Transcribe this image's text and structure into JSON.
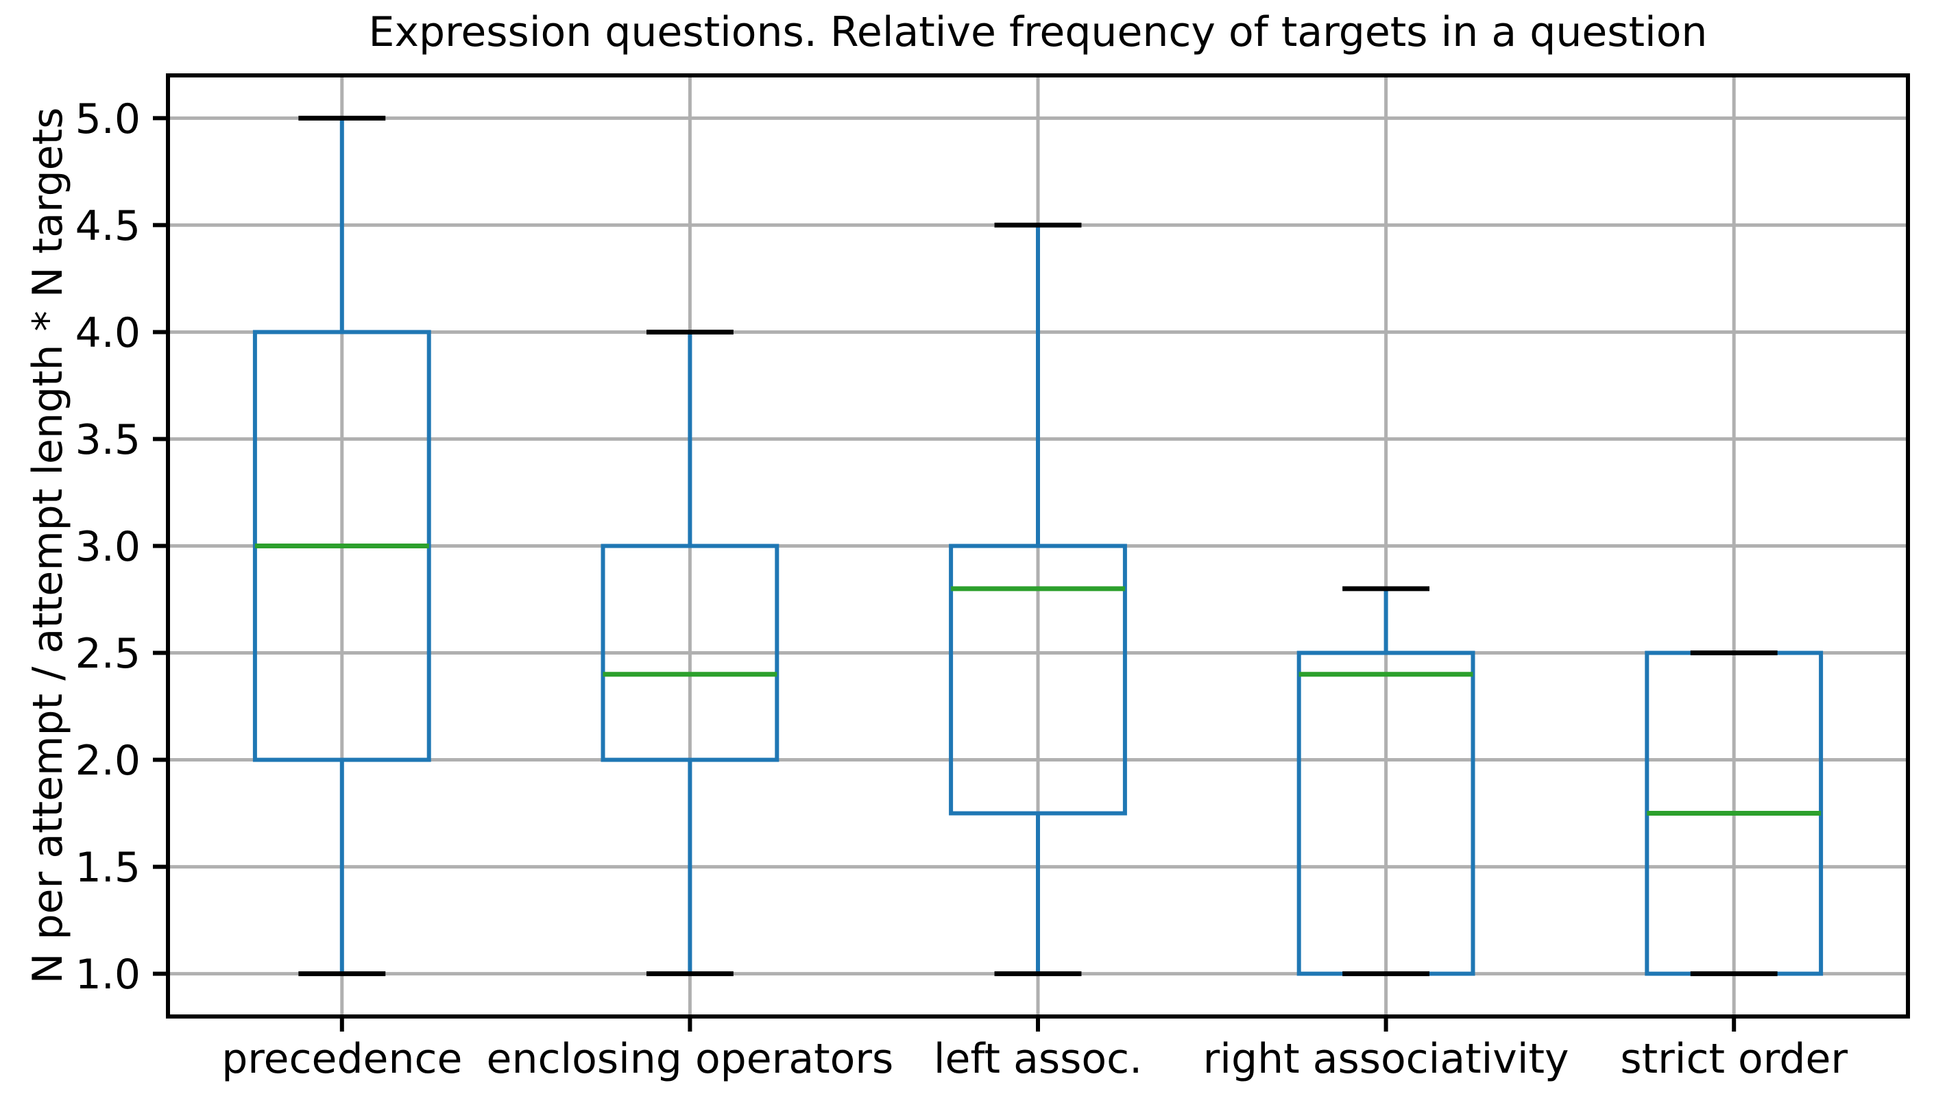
{
  "figure": {
    "title": "Expression questions. Relative frequency of targets in a question",
    "ylabel": "N per attempt / attempt length * N targets"
  },
  "chart_data": {
    "type": "boxplot",
    "title": "Expression questions. Relative frequency of targets in a question",
    "xlabel": "",
    "ylabel": "N per attempt / attempt length * N targets",
    "categories": [
      "precedence",
      "enclosing operators",
      "left assoc.",
      "right associativity",
      "strict order"
    ],
    "boxes": [
      {
        "category": "precedence",
        "whisker_low": 1.0,
        "q1": 2.0,
        "median": 3.0,
        "q3": 4.0,
        "whisker_high": 5.0
      },
      {
        "category": "enclosing operators",
        "whisker_low": 1.0,
        "q1": 2.0,
        "median": 2.4,
        "q3": 3.0,
        "whisker_high": 4.0
      },
      {
        "category": "left assoc.",
        "whisker_low": 1.0,
        "q1": 1.75,
        "median": 2.8,
        "q3": 3.0,
        "whisker_high": 4.5
      },
      {
        "category": "right associativity",
        "whisker_low": 1.0,
        "q1": 1.0,
        "median": 2.4,
        "q3": 2.5,
        "whisker_high": 2.8
      },
      {
        "category": "strict order",
        "whisker_low": 1.0,
        "q1": 1.0,
        "median": 1.75,
        "q3": 2.5,
        "whisker_high": 2.5
      }
    ],
    "yticks": [
      1.0,
      1.5,
      2.0,
      2.5,
      3.0,
      3.5,
      4.0,
      4.5,
      5.0
    ],
    "ytick_labels": [
      "1.0",
      "1.5",
      "2.0",
      "2.5",
      "3.0",
      "3.5",
      "4.0",
      "4.5",
      "5.0"
    ],
    "ylim": [
      0.8,
      5.2
    ],
    "xlim": [
      0.5,
      5.5
    ],
    "grid": true,
    "legend_position": "none",
    "colors": {
      "box": "#1f77b4",
      "whisker": "#1f77b4",
      "cap": "#000000",
      "median": "#2ca02c",
      "grid": "#b0b0b0",
      "spine": "#000000",
      "text": "#000000",
      "background": "#ffffff"
    }
  }
}
